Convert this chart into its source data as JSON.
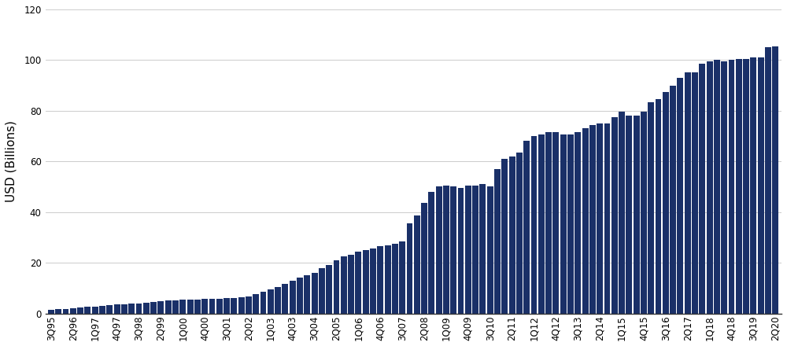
{
  "bar_color": "#1a3068",
  "ylabel": "USD (Billions)",
  "ylim": [
    0,
    120
  ],
  "yticks": [
    0,
    20,
    40,
    60,
    80,
    100,
    120
  ],
  "grid_color": "#cccccc",
  "background_color": "#ffffff",
  "tick_fontsize": 8.5,
  "ylabel_fontsize": 11,
  "tick_labels_shown": [
    "3Q95",
    "2Q96",
    "1Q97",
    "4Q97",
    "3Q98",
    "2Q99",
    "1Q00",
    "4Q00",
    "3Q01",
    "2Q02",
    "1Q03",
    "4Q03",
    "3Q04",
    "2Q05",
    "1Q06",
    "4Q06",
    "3Q07",
    "2Q08",
    "1Q09",
    "4Q09",
    "3Q10",
    "2Q11",
    "1Q12",
    "4Q12",
    "3Q13",
    "2Q14",
    "1Q15",
    "4Q15",
    "3Q16",
    "2Q17",
    "1Q18",
    "4Q18",
    "3Q19",
    "2Q20"
  ],
  "raw_values": [
    1.5,
    1.6,
    1.8,
    2.0,
    2.2,
    2.5,
    2.8,
    3.0,
    3.2,
    3.5,
    3.7,
    3.8,
    4.0,
    4.3,
    4.5,
    4.8,
    5.0,
    5.2,
    5.5,
    5.5,
    5.5,
    5.8,
    5.8,
    5.8,
    6.0,
    6.2,
    6.5,
    6.8,
    7.5,
    8.5,
    9.5,
    10.5,
    11.5,
    13.0,
    14.0,
    15.0,
    16.0,
    18.0,
    19.0,
    21.0,
    22.5,
    23.0,
    24.5,
    25.0,
    25.5,
    26.5,
    27.0,
    27.5,
    28.5,
    35.5,
    38.5,
    43.5,
    48.0,
    50.0,
    50.5,
    50.0,
    49.5,
    50.5,
    50.5,
    51.0,
    50.0,
    57.0,
    61.0,
    62.0,
    63.5,
    68.0,
    70.0,
    70.5,
    71.5,
    71.5,
    70.5,
    70.5,
    71.5,
    73.0,
    74.5,
    75.0,
    75.0,
    77.5,
    79.5,
    78.0,
    78.0,
    79.5,
    83.5,
    84.5,
    87.5,
    90.0,
    93.0,
    95.0,
    95.0,
    98.5,
    99.5,
    100.0,
    99.5,
    100.0,
    100.5,
    100.5,
    101.0,
    101.0,
    105.0,
    105.5
  ]
}
